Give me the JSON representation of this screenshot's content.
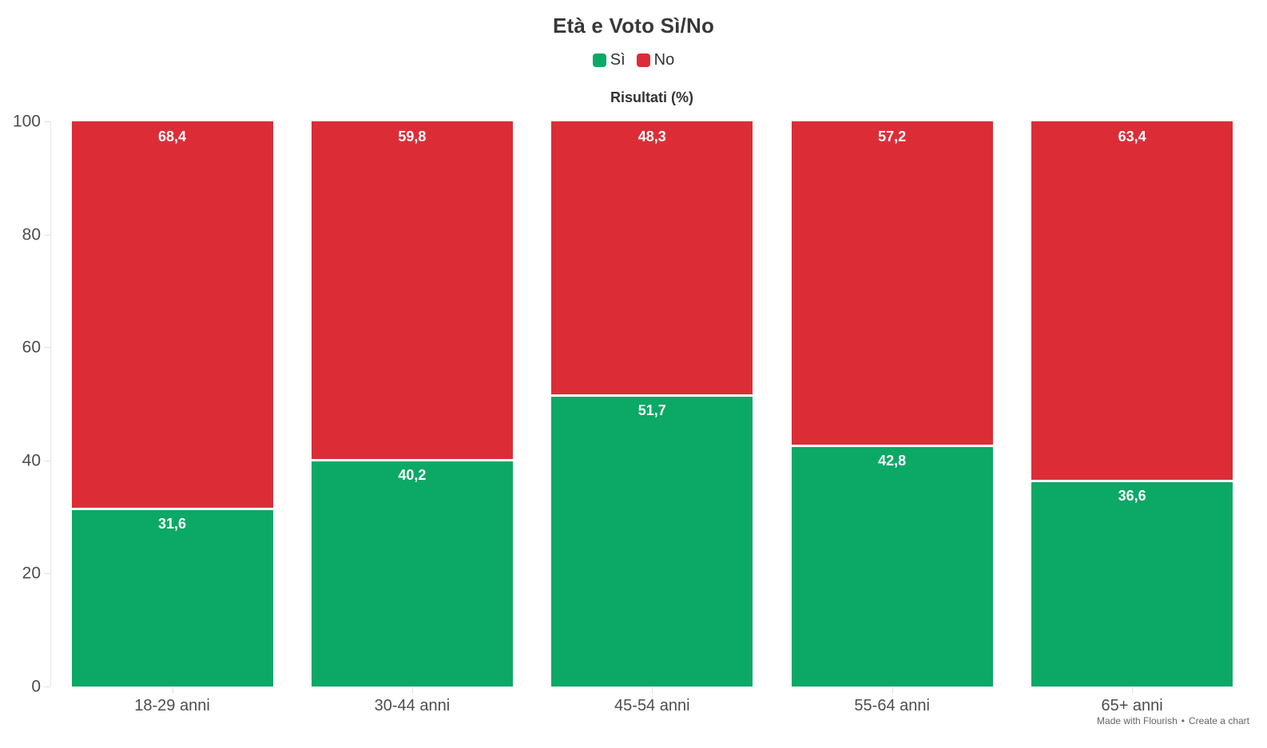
{
  "title": "Età e Voto Sì/No",
  "subtitle": "Risultati (%)",
  "legend": {
    "items": [
      {
        "label": "Sì",
        "color": "#0CA866"
      },
      {
        "label": "No",
        "color": "#DC2D37"
      }
    ]
  },
  "footer": {
    "made_with": "Made with Flourish",
    "separator": "•",
    "create_chart": "Create a chart"
  },
  "colors": {
    "si_green": "#0CA866",
    "no_red": "#DC2D37",
    "axis_line": "#e7e7e7",
    "axis_text": "#4d4d4d"
  },
  "chart_data": {
    "type": "bar",
    "stacked": true,
    "orientation": "vertical",
    "title": "Età e Voto Sì/No",
    "subtitle": "Risultati (%)",
    "categories": [
      "18-29 anni",
      "30-44 anni",
      "45-54 anni",
      "55-64 anni",
      "65+ anni"
    ],
    "series": [
      {
        "name": "Sì",
        "color": "#0CA866",
        "values": [
          31.6,
          40.2,
          51.7,
          42.8,
          36.6
        ],
        "display": [
          "31,6",
          "40,2",
          "51,7",
          "42,8",
          "36,6"
        ]
      },
      {
        "name": "No",
        "color": "#DC2D37",
        "values": [
          68.4,
          59.8,
          48.3,
          57.2,
          63.4
        ],
        "display": [
          "68,4",
          "59,8",
          "48,3",
          "57,2",
          "63,4"
        ]
      }
    ],
    "xlabel": "",
    "ylabel": "",
    "ylim": [
      0,
      100
    ],
    "yticks": [
      0,
      20,
      40,
      60,
      80,
      100
    ],
    "grid": false,
    "legend_position": "top",
    "value_labels": "inside-top",
    "decimal_separator": ","
  }
}
